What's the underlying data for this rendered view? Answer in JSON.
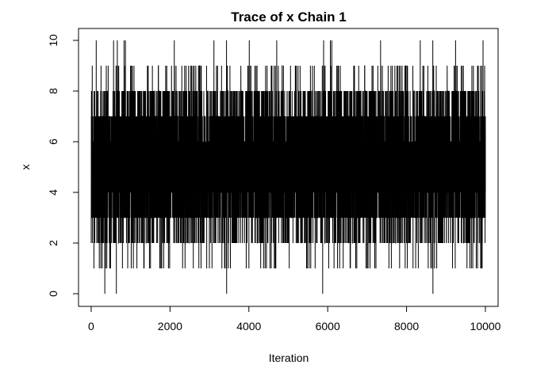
{
  "chart_data": {
    "type": "line",
    "title": "Trace of x Chain 1",
    "xlabel": "Iteration",
    "ylabel": "x",
    "xlim": [
      1,
      10000
    ],
    "ylim": [
      0,
      10
    ],
    "x_ticks": [
      "0",
      "2000",
      "4000",
      "6000",
      "8000",
      "10000"
    ],
    "y_ticks": [
      "0",
      "2",
      "4",
      "6",
      "8",
      "10"
    ],
    "x_tick_values": [
      0,
      2000,
      4000,
      6000,
      8000,
      10000
    ],
    "y_tick_values": [
      0,
      2,
      4,
      6,
      8,
      10
    ],
    "series": [
      {
        "color": "#000000",
        "n_iterations": 10000,
        "value_range": [
          0,
          10
        ],
        "distribution": "discrete integer samples, roughly binomial, centered near 5"
      }
    ],
    "grid": false,
    "legend": "none"
  }
}
